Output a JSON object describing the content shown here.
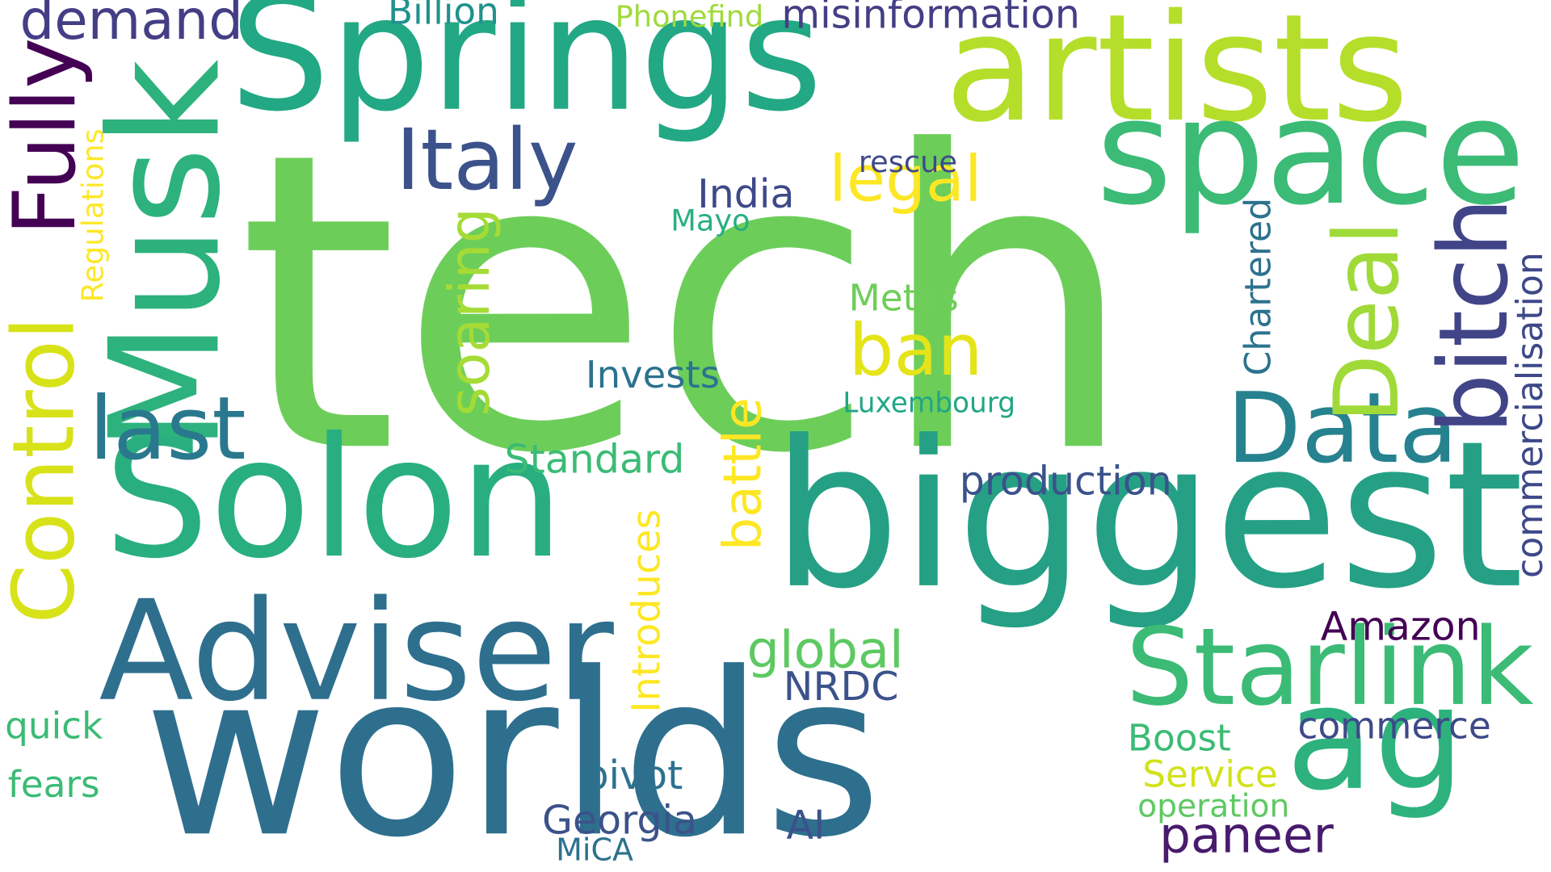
{
  "words": [
    {
      "text": "tech",
      "color": "#6cce59"
    },
    {
      "text": "worlds",
      "color": "#2e6f8e"
    },
    {
      "text": "biggest",
      "color": "#25a085"
    },
    {
      "text": "Solon",
      "color": "#29af7f"
    },
    {
      "text": "Springs",
      "color": "#22a884"
    },
    {
      "text": "artists",
      "color": "#b5de2b"
    },
    {
      "text": "Musk",
      "color": "#2db27d"
    },
    {
      "text": "space",
      "color": "#3bbb75"
    },
    {
      "text": "Adviser",
      "color": "#2e6f8e"
    },
    {
      "text": "ag",
      "color": "#2db27d"
    },
    {
      "text": "Starlink",
      "color": "#3bbb75"
    },
    {
      "text": "Data",
      "color": "#26828e"
    },
    {
      "text": "bitch",
      "color": "#414487"
    },
    {
      "text": "Deal",
      "color": "#a0da39"
    },
    {
      "text": "Control",
      "color": "#d8e219"
    },
    {
      "text": "Fully",
      "color": "#440154"
    },
    {
      "text": "last",
      "color": "#2a788e"
    },
    {
      "text": "Italy",
      "color": "#3b528b"
    },
    {
      "text": "ban",
      "color": "#e5e419"
    },
    {
      "text": "legal",
      "color": "#fde725"
    },
    {
      "text": "battle",
      "color": "#fde725"
    },
    {
      "text": "soaring",
      "color": "#a5db36"
    },
    {
      "text": "demand",
      "color": "#433e85"
    },
    {
      "text": "global",
      "color": "#5ec962"
    },
    {
      "text": "paneer",
      "color": "#481b6d"
    },
    {
      "text": "Standard",
      "color": "#3bbb75"
    },
    {
      "text": "production",
      "color": "#3b528b"
    },
    {
      "text": "Invests",
      "color": "#2c728e"
    },
    {
      "text": "India",
      "color": "#3e4989"
    },
    {
      "text": "Metas",
      "color": "#6ece58"
    },
    {
      "text": "misinformation",
      "color": "#433e85"
    },
    {
      "text": "Billion",
      "color": "#21918c"
    },
    {
      "text": "Phonefind",
      "color": "#9fda3a"
    },
    {
      "text": "rescue",
      "color": "#3e4989"
    },
    {
      "text": "Mayo",
      "color": "#29af7f"
    },
    {
      "text": "Luxembourg",
      "color": "#21a685"
    },
    {
      "text": "Chartered",
      "color": "#2c728e"
    },
    {
      "text": "commercialisation",
      "color": "#3e4989"
    },
    {
      "text": "Introduces",
      "color": "#fde725"
    },
    {
      "text": "Regulations",
      "color": "#fde725"
    },
    {
      "text": "Amazon",
      "color": "#440154"
    },
    {
      "text": "commerce",
      "color": "#3e4989"
    },
    {
      "text": "NRDC",
      "color": "#3b528b"
    },
    {
      "text": "Boost",
      "color": "#3bbb75"
    },
    {
      "text": "Service",
      "color": "#d2e21b"
    },
    {
      "text": "operation",
      "color": "#5ec962"
    },
    {
      "text": "quick",
      "color": "#3bbb75"
    },
    {
      "text": "fears",
      "color": "#3bbb75"
    },
    {
      "text": "pivot",
      "color": "#2c728e"
    },
    {
      "text": "Georgia",
      "color": "#3b528b"
    },
    {
      "text": "AI",
      "color": "#3b528b"
    },
    {
      "text": "MiCA",
      "color": "#2c728e"
    }
  ]
}
